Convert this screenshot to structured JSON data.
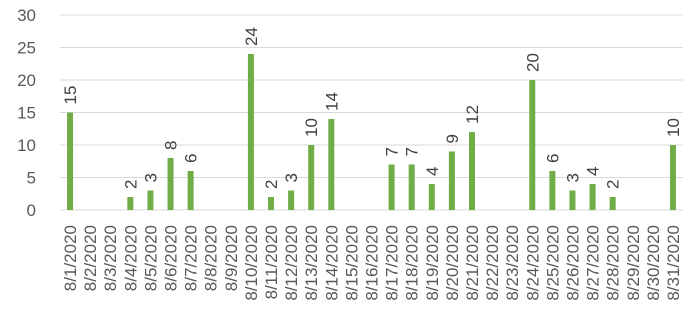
{
  "chart_data": {
    "type": "bar",
    "title": "",
    "xlabel": "",
    "ylabel": "",
    "ylim": [
      0,
      30
    ],
    "yticks": [
      0,
      5,
      10,
      15,
      20,
      25,
      30
    ],
    "grid": true,
    "legend": "none",
    "bar_color": "#70ad47",
    "categories": [
      "8/1/2020",
      "8/2/2020",
      "8/3/2020",
      "8/4/2020",
      "8/5/2020",
      "8/6/2020",
      "8/7/2020",
      "8/8/2020",
      "8/9/2020",
      "8/10/2020",
      "8/11/2020",
      "8/12/2020",
      "8/13/2020",
      "8/14/2020",
      "8/15/2020",
      "8/16/2020",
      "8/17/2020",
      "8/18/2020",
      "8/19/2020",
      "8/20/2020",
      "8/21/2020",
      "8/22/2020",
      "8/23/2020",
      "8/24/2020",
      "8/25/2020",
      "8/26/2020",
      "8/27/2020",
      "8/28/2020",
      "8/29/2020",
      "8/30/2020",
      "8/31/2020"
    ],
    "values": [
      15,
      0,
      0,
      2,
      3,
      8,
      6,
      0,
      0,
      24,
      2,
      3,
      10,
      14,
      0,
      0,
      7,
      7,
      4,
      9,
      12,
      0,
      0,
      20,
      6,
      3,
      4,
      2,
      0,
      0,
      10
    ]
  }
}
